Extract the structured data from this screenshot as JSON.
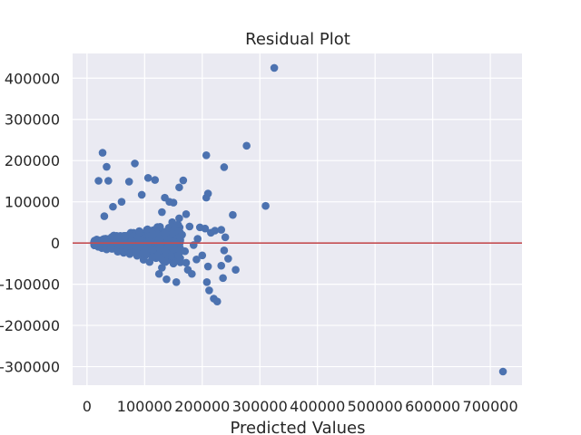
{
  "chart_data": {
    "type": "scatter",
    "title": "Residual Plot",
    "xlabel": "Predicted Values",
    "ylabel": "",
    "xlim": [
      -25000,
      755000
    ],
    "ylim": [
      -345000,
      460000
    ],
    "x_ticks": [
      0,
      100000,
      200000,
      300000,
      400000,
      500000,
      600000,
      700000
    ],
    "y_ticks": [
      -300000,
      -200000,
      -100000,
      0,
      100000,
      200000,
      300000,
      400000
    ],
    "grid": true,
    "legend": "none",
    "reference_line": {
      "y": 0
    },
    "colors": {
      "background": "#eaeaf2",
      "grid": "#ffffff",
      "points": "#4c72b0",
      "reference_line": "#c44e52"
    },
    "outliers": [
      {
        "x": 325000,
        "y": 425000
      },
      {
        "x": 722000,
        "y": -312000
      },
      {
        "x": 277000,
        "y": 236000
      },
      {
        "x": 27000,
        "y": 219000
      },
      {
        "x": 207000,
        "y": 213000
      },
      {
        "x": 83000,
        "y": 193000
      },
      {
        "x": 34000,
        "y": 185000
      },
      {
        "x": 238000,
        "y": 184000
      },
      {
        "x": 106000,
        "y": 158000
      },
      {
        "x": 118000,
        "y": 153000
      },
      {
        "x": 20000,
        "y": 151000
      },
      {
        "x": 37000,
        "y": 151000
      },
      {
        "x": 73000,
        "y": 149000
      },
      {
        "x": 167000,
        "y": 152000
      },
      {
        "x": 160000,
        "y": 135000
      },
      {
        "x": 210000,
        "y": 120000
      },
      {
        "x": 95000,
        "y": 117000
      },
      {
        "x": 135000,
        "y": 110000
      },
      {
        "x": 207000,
        "y": 110000
      },
      {
        "x": 310000,
        "y": 90000
      },
      {
        "x": 253000,
        "y": 68000
      },
      {
        "x": 222000,
        "y": 30000
      },
      {
        "x": 233000,
        "y": 32000
      },
      {
        "x": 240000,
        "y": 14000
      },
      {
        "x": 238000,
        "y": -18000
      },
      {
        "x": 245000,
        "y": -38000
      },
      {
        "x": 258000,
        "y": -65000
      },
      {
        "x": 233000,
        "y": -55000
      },
      {
        "x": 236000,
        "y": -85000
      },
      {
        "x": 208000,
        "y": -95000
      },
      {
        "x": 212000,
        "y": -115000
      },
      {
        "x": 220000,
        "y": -135000
      },
      {
        "x": 226000,
        "y": -142000
      },
      {
        "x": 210000,
        "y": -57000
      },
      {
        "x": 182000,
        "y": -75000
      },
      {
        "x": 175000,
        "y": -65000
      },
      {
        "x": 155000,
        "y": -95000
      },
      {
        "x": 138000,
        "y": -88000
      },
      {
        "x": 185000,
        "y": -5000
      },
      {
        "x": 192000,
        "y": 10000
      },
      {
        "x": 178000,
        "y": 40000
      },
      {
        "x": 196000,
        "y": 38000
      },
      {
        "x": 205000,
        "y": 35000
      },
      {
        "x": 215000,
        "y": 25000
      },
      {
        "x": 200000,
        "y": -30000
      },
      {
        "x": 190000,
        "y": -40000
      },
      {
        "x": 172000,
        "y": -48000
      },
      {
        "x": 150000,
        "y": 98000
      },
      {
        "x": 143000,
        "y": 100000
      },
      {
        "x": 172000,
        "y": 70000
      },
      {
        "x": 60000,
        "y": 100000
      },
      {
        "x": 45000,
        "y": 88000
      },
      {
        "x": 30000,
        "y": 65000
      },
      {
        "x": 130000,
        "y": 75000
      },
      {
        "x": 160000,
        "y": 60000
      },
      {
        "x": 165000,
        "y": 20000
      },
      {
        "x": 170000,
        "y": -20000
      },
      {
        "x": 150000,
        "y": -50000
      },
      {
        "x": 125000,
        "y": -75000
      },
      {
        "x": 130000,
        "y": -60000
      }
    ]
  }
}
